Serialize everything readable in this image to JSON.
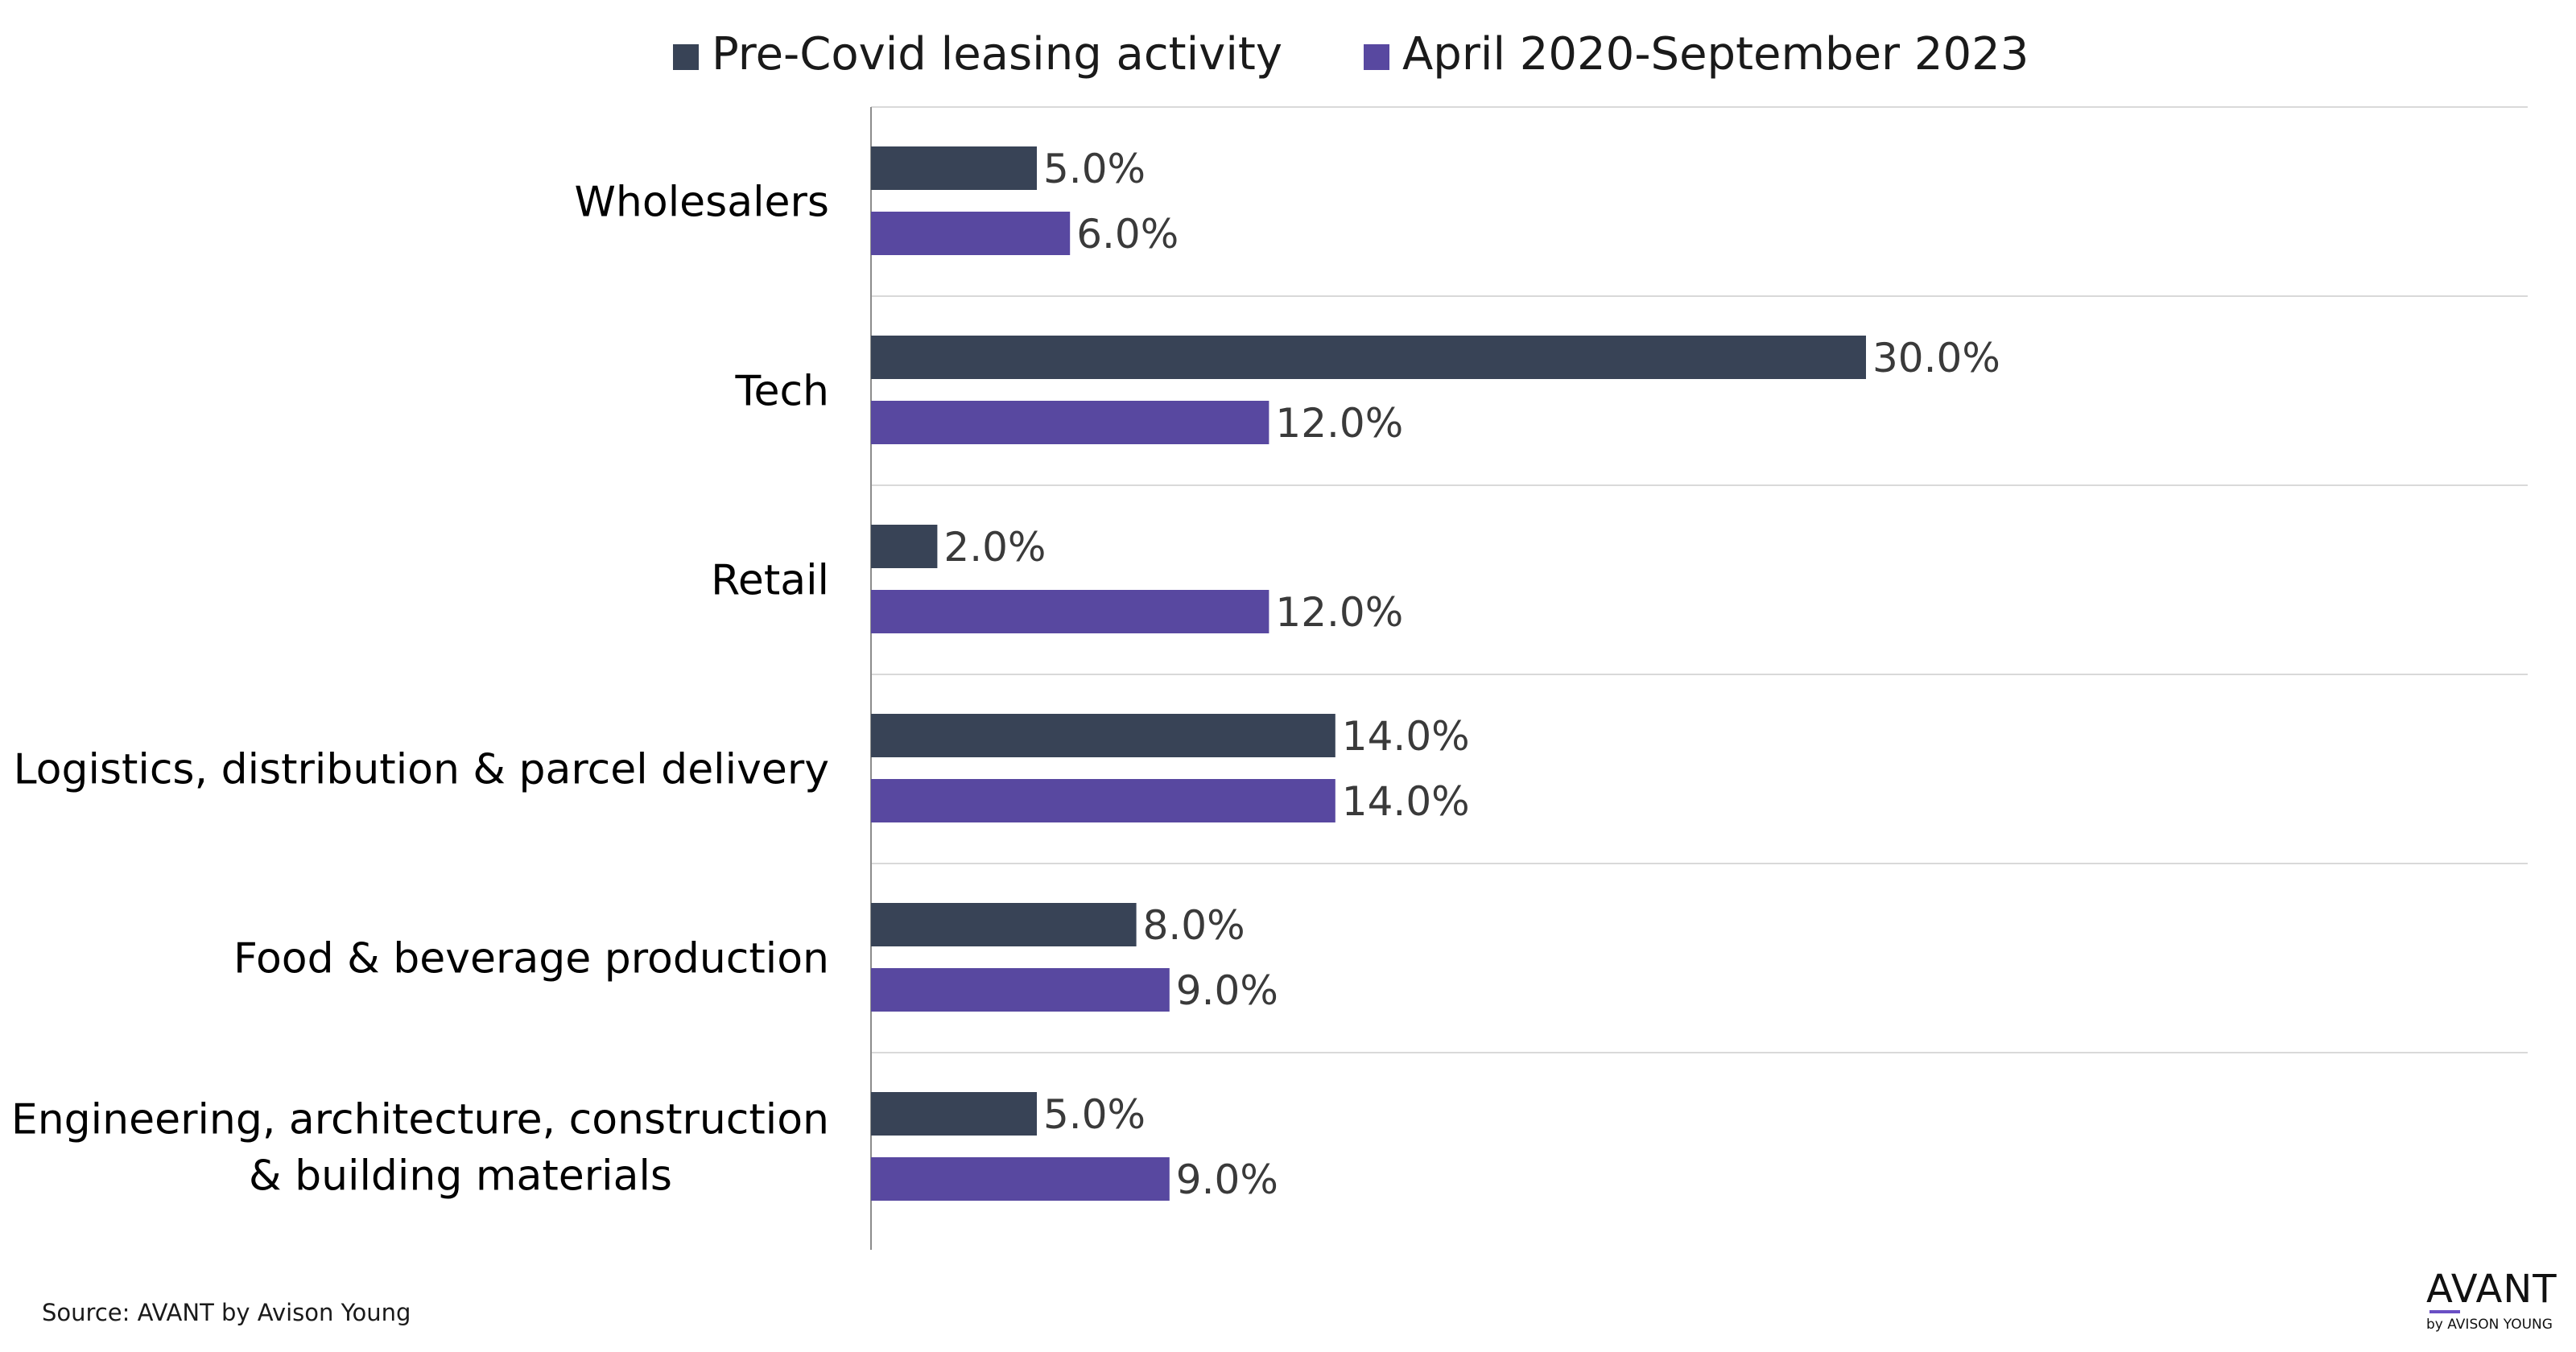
{
  "chart_data": {
    "type": "bar",
    "orientation": "horizontal",
    "title": "",
    "categories": [
      [
        "Wholesalers"
      ],
      [
        "Tech"
      ],
      [
        "Retail"
      ],
      [
        "Logistics, distribution & parcel delivery"
      ],
      [
        "Food & beverage production"
      ],
      [
        "Engineering, architecture, construction",
        "& building materials"
      ]
    ],
    "series": [
      {
        "name": "Pre-Covid leasing activity",
        "color": "#384356",
        "values": [
          5.0,
          30.0,
          2.0,
          14.0,
          8.0,
          5.0
        ],
        "labels": [
          "5.0%",
          "30.0%",
          "2.0%",
          "14.0%",
          "8.0%",
          "5.0%"
        ]
      },
      {
        "name": "April 2020-September 2023",
        "color": "#5848a0",
        "values": [
          6.0,
          12.0,
          12.0,
          14.0,
          9.0,
          9.0
        ],
        "labels": [
          "6.0%",
          "12.0%",
          "12.0%",
          "14.0%",
          "9.0%",
          "9.0%"
        ]
      }
    ],
    "xlim": [
      0,
      50
    ],
    "xlabel": "",
    "ylabel": "",
    "legend_position": "top",
    "grid": "horizontal separators"
  },
  "source": "Source: AVANT by Avison Young",
  "logo": {
    "main": "AVANT",
    "sub": "by AVISON YOUNG"
  }
}
